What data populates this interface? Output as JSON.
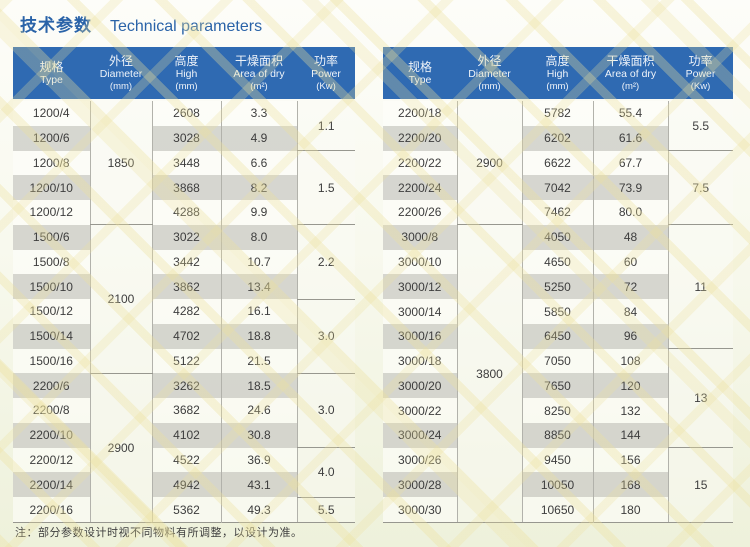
{
  "title": {
    "zh": "技术参数",
    "en": "Technical parameters"
  },
  "note": "注：部分参数设计时视不同物料有所调整，以设计为准。",
  "colors": {
    "header_bg": "#2f6ab2",
    "title": "#2a63a8",
    "stripe": "#d6d6d1",
    "watermark": "#ece09b"
  },
  "tables": [
    {
      "columns": [
        {
          "zh": "规格",
          "en": "Type",
          "sub": ""
        },
        {
          "zh": "外径",
          "en": "Diameter",
          "sub": "(mm)"
        },
        {
          "zh": "高度",
          "en": "High",
          "sub": "(mm)"
        },
        {
          "zh": "干燥面积",
          "en": "Area of dry",
          "sub": "(m²)"
        },
        {
          "zh": "功率",
          "en": "Power",
          "sub": "(Kw)"
        }
      ],
      "rows": [
        {
          "type": "1200/4",
          "high": "2608",
          "area": "3.3"
        },
        {
          "type": "1200/6",
          "high": "3028",
          "area": "4.9"
        },
        {
          "type": "1200/8",
          "high": "3448",
          "area": "6.6"
        },
        {
          "type": "1200/10",
          "high": "3868",
          "area": "8.2"
        },
        {
          "type": "1200/12",
          "high": "4288",
          "area": "9.9"
        },
        {
          "type": "1500/6",
          "high": "3022",
          "area": "8.0"
        },
        {
          "type": "1500/8",
          "high": "3442",
          "area": "10.7"
        },
        {
          "type": "1500/10",
          "high": "3862",
          "area": "13.4"
        },
        {
          "type": "1500/12",
          "high": "4282",
          "area": "16.1"
        },
        {
          "type": "1500/14",
          "high": "4702",
          "area": "18.8"
        },
        {
          "type": "1500/16",
          "high": "5122",
          "area": "21.5"
        },
        {
          "type": "2200/6",
          "high": "3262",
          "area": "18.5"
        },
        {
          "type": "2200/8",
          "high": "3682",
          "area": "24.6"
        },
        {
          "type": "2200/10",
          "high": "4102",
          "area": "30.8"
        },
        {
          "type": "2200/12",
          "high": "4522",
          "area": "36.9"
        },
        {
          "type": "2200/14",
          "high": "4942",
          "area": "43.1"
        },
        {
          "type": "2200/16",
          "high": "5362",
          "area": "49.3"
        }
      ],
      "diameter_groups": [
        {
          "value": "1850",
          "span": 5
        },
        {
          "value": "2100",
          "span": 6
        },
        {
          "value": "2900",
          "span": 6
        }
      ],
      "power_groups": [
        {
          "value": "1.1",
          "span": 2
        },
        {
          "value": "1.5",
          "span": 3
        },
        {
          "value": "2.2",
          "span": 3
        },
        {
          "value": "3.0",
          "span": 3
        },
        {
          "value": "3.0",
          "span": 3
        },
        {
          "value": "4.0",
          "span": 2
        },
        {
          "value": "5.5",
          "span": 1
        }
      ]
    },
    {
      "columns": [
        {
          "zh": "规格",
          "en": "Type",
          "sub": ""
        },
        {
          "zh": "外径",
          "en": "Diameter",
          "sub": "(mm)"
        },
        {
          "zh": "高度",
          "en": "High",
          "sub": "(mm)"
        },
        {
          "zh": "干燥面积",
          "en": "Area of dry",
          "sub": "(m²)"
        },
        {
          "zh": "功率",
          "en": "Power",
          "sub": "(Kw)"
        }
      ],
      "rows": [
        {
          "type": "2200/18",
          "high": "5782",
          "area": "55.4"
        },
        {
          "type": "2200/20",
          "high": "6202",
          "area": "61.6"
        },
        {
          "type": "2200/22",
          "high": "6622",
          "area": "67.7"
        },
        {
          "type": "2200/24",
          "high": "7042",
          "area": "73.9"
        },
        {
          "type": "2200/26",
          "high": "7462",
          "area": "80.0"
        },
        {
          "type": "3000/8",
          "high": "4050",
          "area": "48"
        },
        {
          "type": "3000/10",
          "high": "4650",
          "area": "60"
        },
        {
          "type": "3000/12",
          "high": "5250",
          "area": "72"
        },
        {
          "type": "3000/14",
          "high": "5850",
          "area": "84"
        },
        {
          "type": "3000/16",
          "high": "6450",
          "area": "96"
        },
        {
          "type": "3000/18",
          "high": "7050",
          "area": "108"
        },
        {
          "type": "3000/20",
          "high": "7650",
          "area": "120"
        },
        {
          "type": "3000/22",
          "high": "8250",
          "area": "132"
        },
        {
          "type": "3000/24",
          "high": "8850",
          "area": "144"
        },
        {
          "type": "3000/26",
          "high": "9450",
          "area": "156"
        },
        {
          "type": "3000/28",
          "high": "10050",
          "area": "168"
        },
        {
          "type": "3000/30",
          "high": "10650",
          "area": "180"
        }
      ],
      "diameter_groups": [
        {
          "value": "2900",
          "span": 5
        },
        {
          "value": "3800",
          "span": 12
        }
      ],
      "power_groups": [
        {
          "value": "5.5",
          "span": 2
        },
        {
          "value": "7.5",
          "span": 3
        },
        {
          "value": "11",
          "span": 5
        },
        {
          "value": "13",
          "span": 4
        },
        {
          "value": "15",
          "span": 3
        }
      ]
    }
  ]
}
